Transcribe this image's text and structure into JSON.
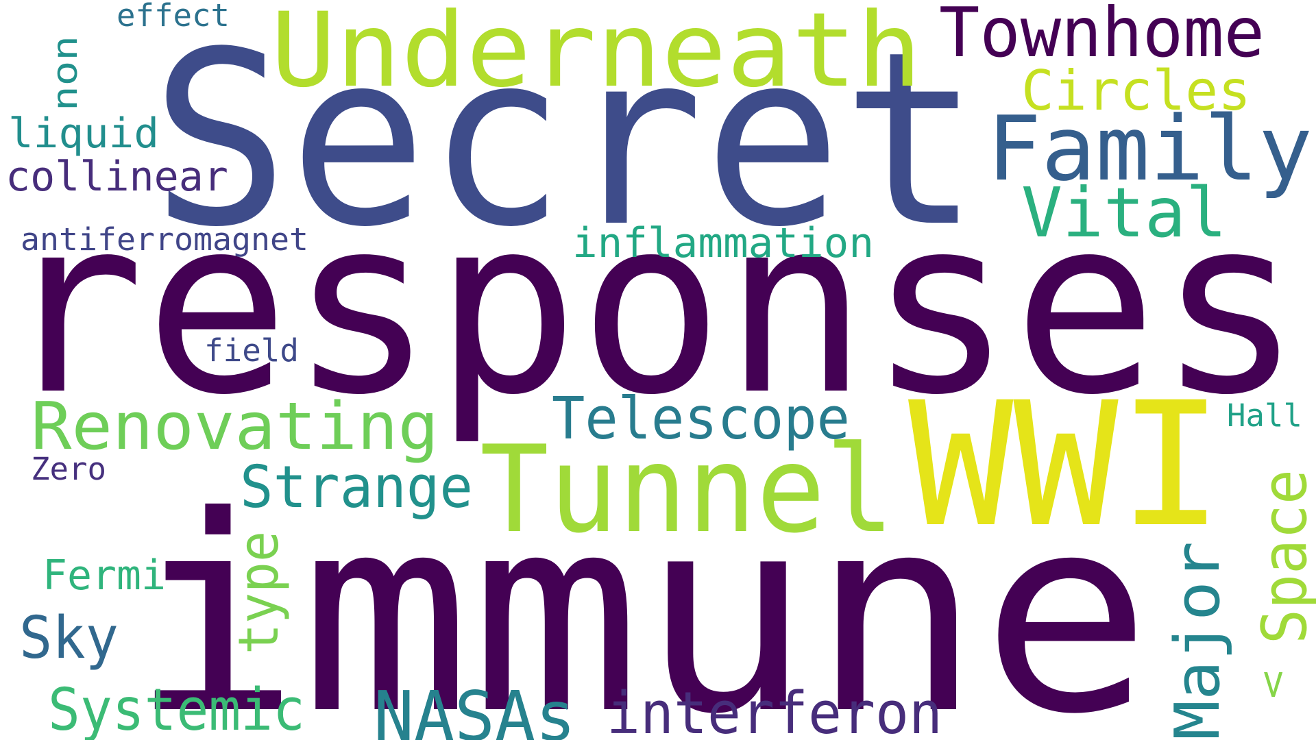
{
  "words": [
    {
      "text": "responses",
      "color": "#440154"
    },
    {
      "text": "immune",
      "color": "#440154"
    },
    {
      "text": "Secret",
      "color": "#3e4c8a"
    },
    {
      "text": "WWI",
      "color": "#e5e419"
    },
    {
      "text": "Underneath",
      "color": "#b2dd2d"
    },
    {
      "text": "Tunnel",
      "color": "#a0da39"
    },
    {
      "text": "Family",
      "color": "#355f8d"
    },
    {
      "text": "Townhome",
      "color": "#440154"
    },
    {
      "text": "Vital",
      "color": "#2ab07f"
    },
    {
      "text": "Circles",
      "color": "#c5e021"
    },
    {
      "text": "Renovating",
      "color": "#6ece58"
    },
    {
      "text": "Telescope",
      "color": "#287c8e"
    },
    {
      "text": "Strange",
      "color": "#21918c"
    },
    {
      "text": "NASAs",
      "color": "#26828e"
    },
    {
      "text": "interferon",
      "color": "#472d7b"
    },
    {
      "text": "Systemic",
      "color": "#3bbb75"
    },
    {
      "text": "Major",
      "color": "#25858e"
    },
    {
      "text": "Space",
      "color": "#a0da39"
    },
    {
      "text": "inflammation",
      "color": "#22a884"
    },
    {
      "text": "Sky",
      "color": "#31688e"
    },
    {
      "text": "type",
      "color": "#7ad151"
    },
    {
      "text": "Fermi",
      "color": "#2fb47c"
    },
    {
      "text": "collinear",
      "color": "#472d7b"
    },
    {
      "text": "liquid",
      "color": "#218e8d"
    },
    {
      "text": "antiferromagnet",
      "color": "#404588"
    },
    {
      "text": "field",
      "color": "#3e4989"
    },
    {
      "text": "Zero",
      "color": "#46307e"
    },
    {
      "text": "Hall",
      "color": "#1fa187"
    },
    {
      "text": "effect",
      "color": "#2c728e"
    },
    {
      "text": "non",
      "color": "#21918c"
    },
    {
      "text": "<",
      "color": "#86d549"
    }
  ]
}
